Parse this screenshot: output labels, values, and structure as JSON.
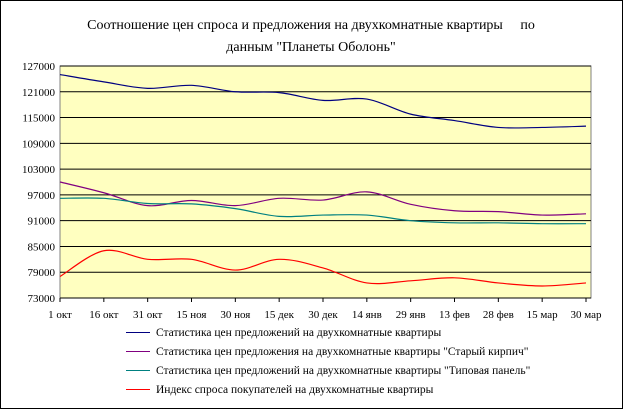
{
  "chart_data": {
    "type": "line",
    "title": "Соотношение цен спроса и предложения на двухкомнатные квартиры     по данным \"Планеты Оболонь\"",
    "title_lines": [
      "Соотношение цен спроса и предложения на двухкомнатные квартиры     по",
      "данным \"Планеты Оболонь\""
    ],
    "xlabel": "",
    "ylabel": "",
    "categories": [
      "1 окт",
      "16 окт",
      "31 окт",
      "15 ноя",
      "30 ноя",
      "15 дек",
      "30 дек",
      "14 янв",
      "29 янв",
      "13 фев",
      "28 фев",
      "15 мар",
      "30 мар"
    ],
    "ylim": [
      73000,
      127000
    ],
    "yticks": [
      73000,
      79000,
      85000,
      91000,
      97000,
      103000,
      109000,
      115000,
      121000,
      127000
    ],
    "grid": true,
    "legend_position": "bottom",
    "background": "#FFFFC0",
    "series": [
      {
        "name": "Статистика цен предложений на двухкомнатные квартиры",
        "color": "#000080",
        "values": [
          125000,
          123300,
          121800,
          122500,
          121000,
          120800,
          119000,
          119300,
          115800,
          114300,
          112700,
          112700,
          113000
        ]
      },
      {
        "name": "Статистика цен предложения на двухкомнатные квартиры \"Старый кирпич\"",
        "color": "#800080",
        "values": [
          100000,
          97500,
          94500,
          95700,
          94500,
          96200,
          95800,
          97700,
          94800,
          93300,
          93100,
          92300,
          92600
        ]
      },
      {
        "name": "Статистика цен предложений на двухкомнатные квартиры \"Типовая панель\"",
        "color": "#008080",
        "values": [
          96200,
          96200,
          95000,
          94900,
          93800,
          92000,
          92300,
          92300,
          91000,
          90500,
          90500,
          90300,
          90300
        ]
      },
      {
        "name": "Индекс спроса покупателей на двухкомнатные квартиры",
        "color": "#FF0000",
        "values": [
          78000,
          84000,
          82000,
          82000,
          79500,
          82000,
          80000,
          76500,
          77000,
          77700,
          76500,
          75800,
          76500
        ]
      }
    ]
  }
}
